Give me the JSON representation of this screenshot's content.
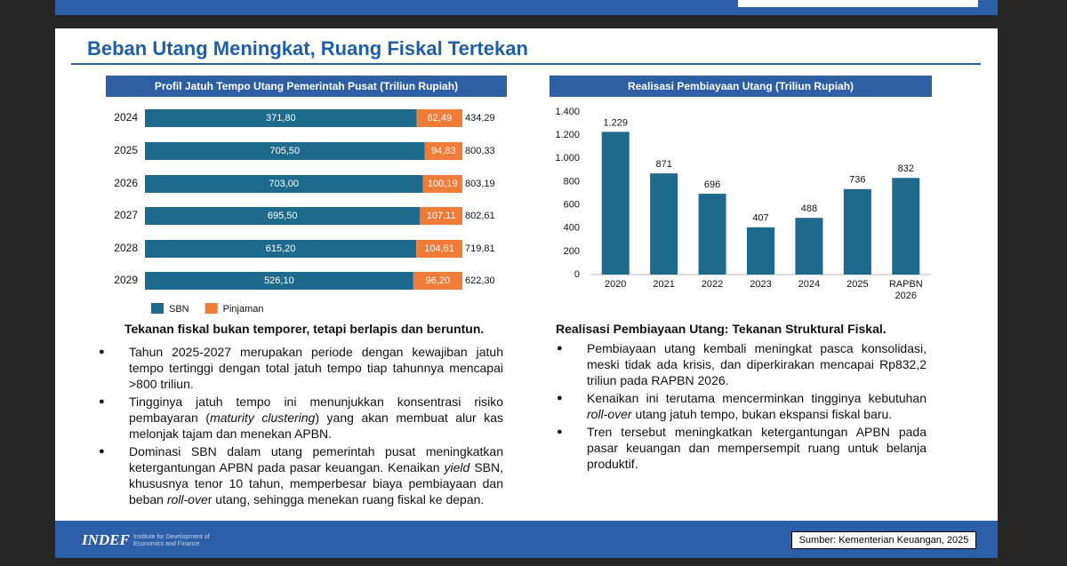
{
  "slide": {
    "title": "Beban Utang Meningkat, Ruang Fiskal Tertekan",
    "left_heading": "Tekanan fiskal bukan temporer, tetapi berlapis dan beruntun.",
    "left_bullets": [
      [
        "Tahun 2025-2027 merupakan periode dengan kewajiban jatuh tempo tertinggi dengan total jatuh tempo tiap tahunnya mencapai >800 triliun."
      ],
      [
        "Tingginya jatuh tempo ini menunjukkan konsentrasi risiko pembayaran (",
        "maturity clustering",
        ") yang akan membuat alur kas melonjak tajam dan menekan APBN."
      ],
      [
        "Dominasi SBN dalam utang pemerintah pusat meningkatkan ketergantungan APBN pada pasar keuangan. Kenaikan ",
        "yield",
        " SBN, khususnya tenor 10 tahun, memperbesar biaya pembiayaan dan beban ",
        "roll-ove",
        "r utang, sehingga menekan ruang fiskal ke depan."
      ]
    ],
    "right_heading": "Realisasi Pembiayaan Utang: Tekanan Struktural Fiskal.",
    "right_bullets": [
      [
        "Pembiayaan utang kembali meningkat pasca konsolidasi, meski tidak ada krisis, dan diperkirakan mencapai Rp832,2 triliun pada RAPBN 2026."
      ],
      [
        "Kenaikan ini terutama mencerminkan tingginya kebutuhan ",
        "roll-over",
        " utang jatuh tempo, bukan ekspansi fiskal baru."
      ],
      [
        "Tren tersebut meningkatkan ketergantungan APBN pada pasar keuangan dan mempersempit ruang untuk belanja produktif."
      ]
    ],
    "logo": "INDEF",
    "logo_tagline": "Institute for Development of Economics and Finance",
    "source": "Sumber: Kementerian Keuangan, 2025"
  },
  "chart_data": [
    {
      "type": "stacked-bar-horizontal",
      "title": "Profil Jatuh Tempo Utang Pemerintah Pusat (Triliun Rupiah)",
      "categories": [
        "2024",
        "2025",
        "2026",
        "2027",
        "2028",
        "2029"
      ],
      "series": [
        {
          "name": "SBN",
          "color": "#1d6a8c",
          "values": [
            371.8,
            705.5,
            703,
            695.5,
            615.2,
            526.1
          ],
          "value_labels": [
            "371,80",
            "705,50",
            "703,00",
            "695,50",
            "615,20",
            "526,10"
          ]
        },
        {
          "name": "Pinjaman",
          "color": "#f07c3a",
          "values": [
            62.49,
            94.83,
            100.19,
            107.11,
            104.61,
            96.2
          ],
          "value_labels": [
            "62,49",
            "94,83",
            "100,19",
            "107,11",
            "104,61",
            "96,20"
          ]
        }
      ],
      "totals": [
        434.29,
        800.33,
        803.19,
        802.61,
        719.81,
        622.3
      ],
      "total_labels": [
        "434,29",
        "800,33",
        "803,19",
        "802,61",
        "719,81",
        "622,30"
      ]
    },
    {
      "type": "bar",
      "title": "Realisasi Pembiayaan Utang (Triliun Rupiah)",
      "categories": [
        "2020",
        "2021",
        "2022",
        "2023",
        "2024",
        "2025",
        "RAPBN 2026"
      ],
      "values": [
        1229,
        871,
        696,
        407,
        488,
        736,
        832
      ],
      "value_labels": [
        "1.229",
        "871",
        "696",
        "407",
        "488",
        "736",
        "832"
      ],
      "color": "#1d6a8c",
      "ylim": [
        0,
        1400
      ],
      "yticks": [
        0,
        200,
        400,
        600,
        800,
        {
          "value": 1000,
          "label": "1.000"
        },
        {
          "value": 1200,
          "label": "1.200"
        },
        {
          "value": 1400,
          "label": "1.400"
        }
      ]
    }
  ]
}
